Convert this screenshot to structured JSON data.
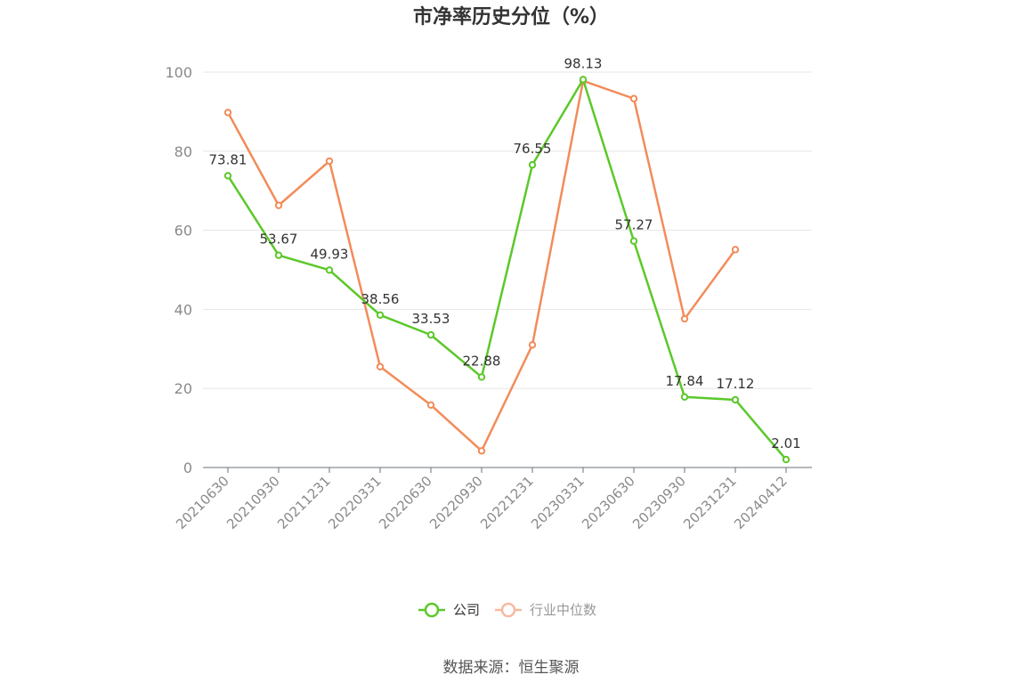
{
  "chart_data": {
    "type": "line",
    "title": "市净率历史分位（%）",
    "categories": [
      "20210630",
      "20210930",
      "20211231",
      "20220331",
      "20220630",
      "20220930",
      "20221231",
      "20230331",
      "20230630",
      "20230930",
      "20231231",
      "20240412"
    ],
    "ylim": [
      0,
      100
    ],
    "yticks": [
      0,
      20,
      40,
      60,
      80,
      100
    ],
    "grid": true,
    "legend_position": "bottom-center",
    "series": [
      {
        "name": "公司",
        "color": "#5cc82a",
        "values": [
          73.81,
          53.67,
          49.93,
          38.56,
          33.53,
          22.88,
          76.55,
          98.13,
          57.27,
          17.84,
          17.12,
          2.01
        ],
        "labels": [
          "73.81",
          "53.67",
          "49.93",
          "38.56",
          "33.53",
          "22.88",
          "76.55",
          "98.13",
          "57.27",
          "17.84",
          "17.12",
          "2.01"
        ]
      },
      {
        "name": "行业中位数",
        "color": "#f28c5a",
        "legend_color": "#f6b9a0",
        "values": [
          89.8,
          66.3,
          77.5,
          25.5,
          15.8,
          4.2,
          31.0,
          97.8,
          93.3,
          37.6,
          55.1,
          null
        ]
      }
    ],
    "source": "数据来源：恒生聚源"
  }
}
